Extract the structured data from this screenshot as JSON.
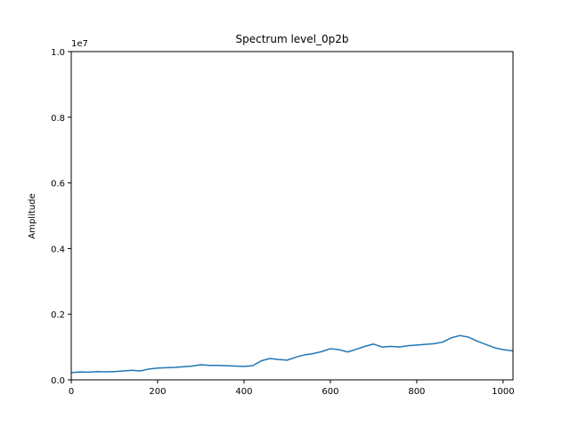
{
  "chart_data": {
    "type": "line",
    "title": "Spectrum level_0p2b",
    "xlabel": "",
    "ylabel": "Amplitude",
    "xlim": [
      0,
      1023
    ],
    "ylim": [
      0,
      10000000
    ],
    "y_offset_label": "1e7",
    "x_ticks": [
      0,
      200,
      400,
      600,
      800,
      1000
    ],
    "x_tick_labels": [
      "0",
      "200",
      "400",
      "600",
      "800",
      "1000"
    ],
    "y_ticks": [
      0,
      2000000,
      4000000,
      6000000,
      8000000,
      10000000
    ],
    "y_tick_labels": [
      "0.0",
      "0.2",
      "0.4",
      "0.6",
      "0.8",
      "1.0"
    ],
    "grid": false,
    "line_color": "#1f77b4",
    "series": [
      {
        "x": [
          0,
          20,
          40,
          60,
          80,
          100,
          120,
          140,
          160,
          180,
          200,
          220,
          240,
          260,
          280,
          300,
          320,
          340,
          360,
          380,
          400,
          420,
          440,
          460,
          480,
          500,
          520,
          540,
          560,
          580,
          600,
          620,
          640,
          660,
          680,
          700,
          720,
          740,
          760,
          780,
          800,
          820,
          840,
          860,
          880,
          900,
          920,
          940,
          960,
          980,
          1000,
          1023
        ],
        "y": [
          220000,
          240000,
          235000,
          250000,
          245000,
          250000,
          270000,
          290000,
          270000,
          330000,
          360000,
          370000,
          380000,
          400000,
          420000,
          460000,
          440000,
          440000,
          430000,
          420000,
          410000,
          430000,
          580000,
          650000,
          620000,
          600000,
          690000,
          760000,
          800000,
          860000,
          950000,
          920000,
          850000,
          930000,
          1020000,
          1090000,
          1000000,
          1020000,
          1000000,
          1040000,
          1060000,
          1080000,
          1100000,
          1150000,
          1280000,
          1350000,
          1300000,
          1180000,
          1080000,
          980000,
          920000,
          880000
        ]
      }
    ]
  }
}
